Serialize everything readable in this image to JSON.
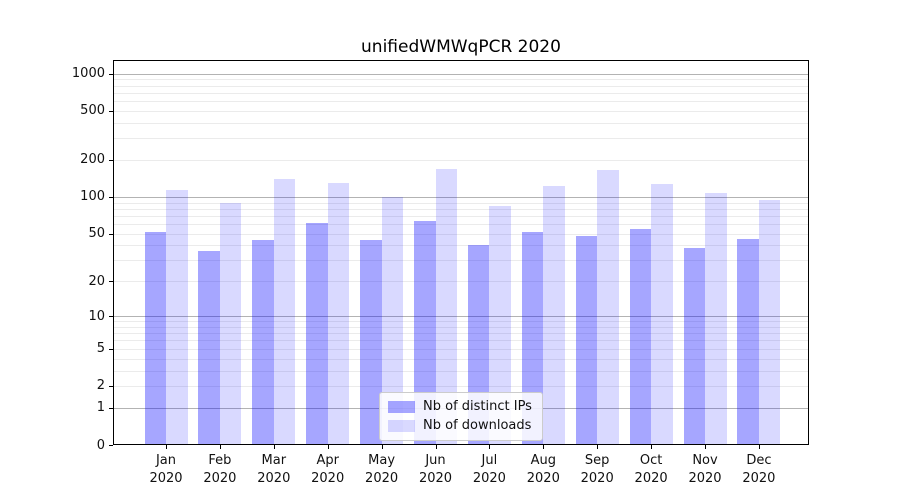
{
  "title": "unifiedWMWqPCR 2020",
  "chart_data": {
    "type": "bar",
    "title": "unifiedWMWqPCR 2020",
    "categories": [
      "Jan",
      "Feb",
      "Mar",
      "Apr",
      "May",
      "Jun",
      "Jul",
      "Aug",
      "Sep",
      "Oct",
      "Nov",
      "Dec"
    ],
    "year_label": "2020",
    "series": [
      {
        "name": "Nb of distinct IPs",
        "color": "rgba(0,0,255,0.35)",
        "values": [
          52,
          36,
          44,
          61,
          44,
          63,
          40,
          52,
          48,
          55,
          38,
          45
        ]
      },
      {
        "name": "Nb of downloads",
        "color": "rgba(0,0,255,0.15)",
        "values": [
          113,
          90,
          140,
          130,
          99,
          168,
          85,
          122,
          166,
          128,
          108,
          94
        ]
      }
    ],
    "xlabel": "",
    "ylabel": "",
    "y_scale": "log10(value+1)",
    "y_ticks": [
      0,
      1,
      2,
      5,
      10,
      20,
      50,
      100,
      200,
      500,
      1000
    ],
    "y_major_gridlines": [
      1,
      10,
      100,
      1000
    ],
    "y_minor_gridlines": [
      2,
      3,
      4,
      5,
      6,
      7,
      8,
      9,
      20,
      30,
      40,
      50,
      60,
      70,
      80,
      90,
      200,
      300,
      400,
      500,
      600,
      700,
      800,
      900
    ],
    "ylim": [
      0,
      1320
    ],
    "grid": true,
    "legend_position": "lower center"
  }
}
